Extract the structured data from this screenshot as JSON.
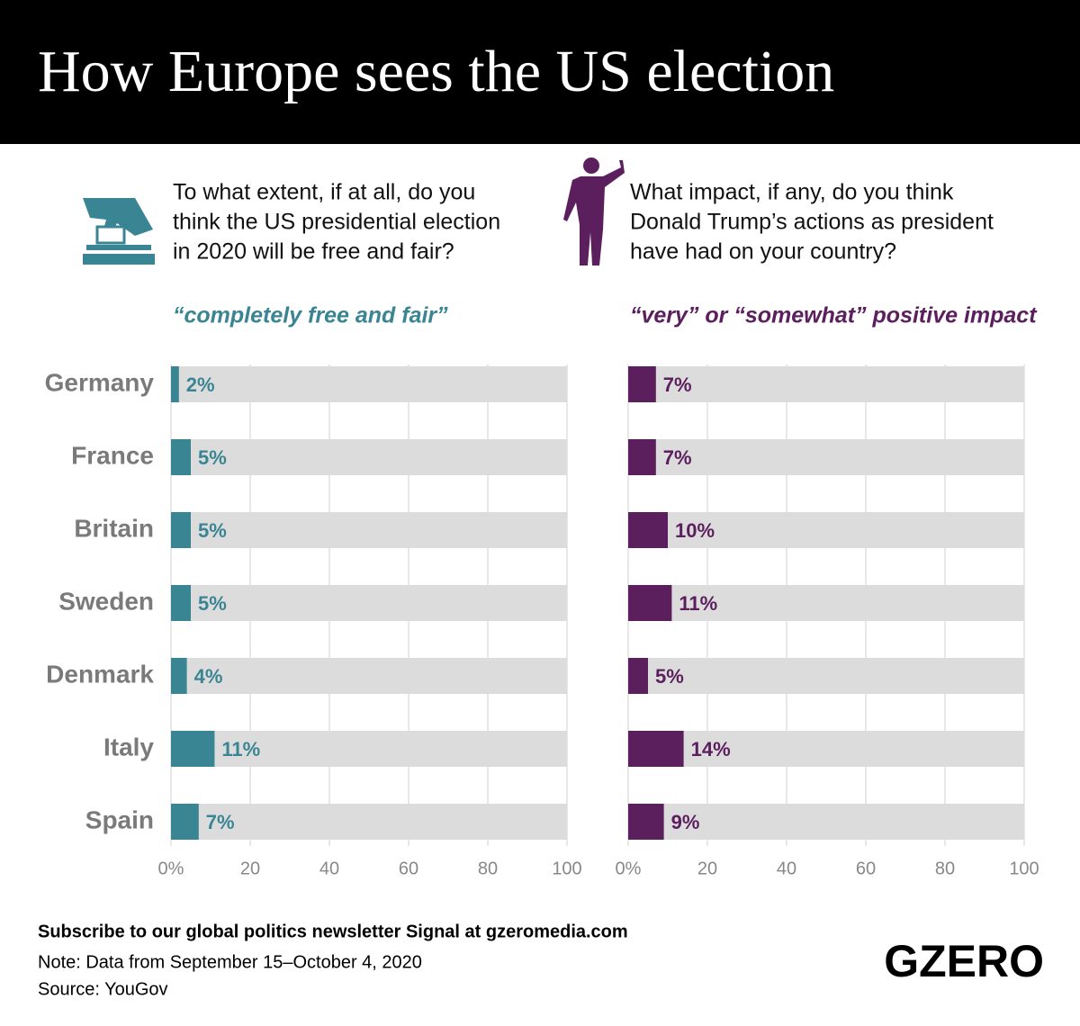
{
  "title": "How Europe sees the US election",
  "chart_data": [
    {
      "type": "hbar",
      "question": [
        "To what extent, if at all, do you",
        "think the US presidential election",
        "in 2020 will be free and fair?"
      ],
      "subtitle": "“completely free and fair”",
      "categories": [
        "Germany",
        "France",
        "Britain",
        "Sweden",
        "Denmark",
        "Italy",
        "Spain"
      ],
      "values": [
        2,
        5,
        5,
        5,
        4,
        11,
        7
      ],
      "value_labels": [
        "2%",
        "5%",
        "5%",
        "5%",
        "4%",
        "11%",
        "7%"
      ],
      "color": "#3a8593",
      "xlim": [
        0,
        100
      ],
      "xticks": [
        {
          "value": 0,
          "label": "0%"
        },
        20,
        40,
        60,
        80,
        100
      ],
      "grid": true
    },
    {
      "type": "hbar",
      "question": [
        "What impact, if any, do you think",
        "Donald Trump’s actions as president",
        "have had on your country?"
      ],
      "subtitle": "“very” or “somewhat” positive impact",
      "values": [
        7,
        7,
        10,
        11,
        5,
        14,
        9
      ],
      "value_labels": [
        "7%",
        "7%",
        "10%",
        "11%",
        "5%",
        "14%",
        "9%"
      ],
      "color": "#5c1f5e",
      "xlim": [
        0,
        100
      ],
      "xticks": [
        {
          "value": 0,
          "label": "0%"
        },
        20,
        40,
        60,
        80,
        100
      ],
      "grid": true
    }
  ],
  "footer": {
    "subscribe": "Subscribe to our global politics newsletter Signal at gzeromedia.com",
    "note": "Note: Data from September 15–October 4, 2020",
    "source": "Source: YouGov",
    "logo": "GZERO"
  }
}
